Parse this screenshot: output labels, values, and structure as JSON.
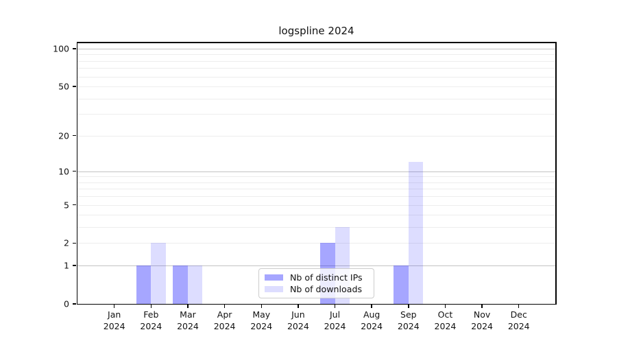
{
  "chart_data": {
    "type": "bar",
    "title": "logspline 2024",
    "categories": [
      "Jan 2024",
      "Feb 2024",
      "Mar 2024",
      "Apr 2024",
      "May 2024",
      "Jun 2024",
      "Jul 2024",
      "Aug 2024",
      "Sep 2024",
      "Oct 2024",
      "Nov 2024",
      "Dec 2024"
    ],
    "series": [
      {
        "name": "Nb of distinct IPs",
        "values": [
          0,
          1,
          1,
          0,
          0,
          0,
          2,
          0,
          1,
          0,
          0,
          0
        ],
        "color": "rgba(0,0,255,0.35)"
      },
      {
        "name": "Nb of downloads",
        "values": [
          0,
          2,
          1,
          0,
          0,
          0,
          3,
          0,
          12,
          0,
          0,
          0
        ],
        "color": "rgba(0,0,255,0.135)"
      }
    ],
    "yscale": "log1p",
    "ylim": [
      0,
      110
    ],
    "y_labeled_ticks": [
      0,
      1,
      2,
      5,
      10,
      20,
      50,
      100
    ],
    "y_major_gridlines": [
      1,
      10,
      100
    ],
    "y_minor_gridlines": [
      2,
      3,
      4,
      5,
      6,
      7,
      8,
      9,
      20,
      30,
      40,
      50,
      60,
      70,
      80,
      90
    ],
    "grid": "both",
    "legend_position": "lower center",
    "colors": {
      "grid_major": "#c3c3c3",
      "grid_minor": "#ededed",
      "spine": "#000000",
      "text": "#111111",
      "background": "#ffffff"
    }
  }
}
